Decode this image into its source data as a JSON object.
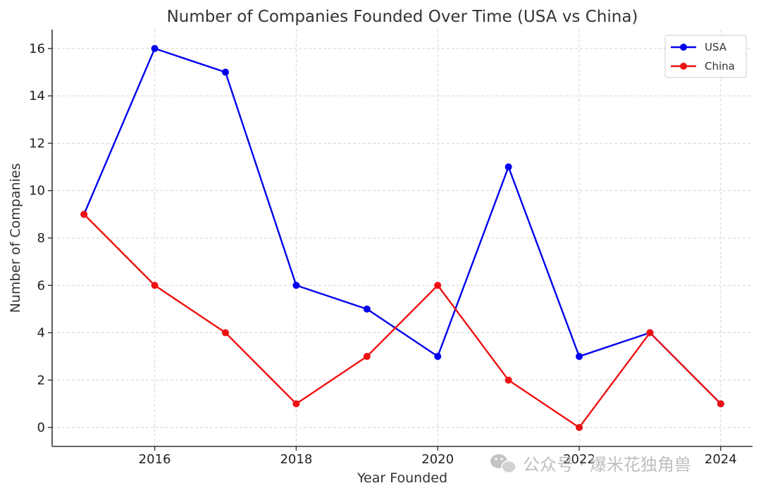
{
  "chart_data": {
    "type": "line",
    "title": "Number of Companies Founded Over Time (USA vs China)",
    "xlabel": "Year Founded",
    "ylabel": "Number of Companies",
    "x": [
      2015,
      2016,
      2017,
      2018,
      2019,
      2020,
      2021,
      2022,
      2023,
      2024
    ],
    "xlim": [
      2014.55,
      2024.45
    ],
    "ylim": [
      -0.8,
      16.8
    ],
    "xticks": [
      2016,
      2018,
      2020,
      2022,
      2024
    ],
    "yticks": [
      0,
      2,
      4,
      6,
      8,
      10,
      12,
      14,
      16
    ],
    "grid": true,
    "legend_position": "top-right",
    "series": [
      {
        "name": "USA",
        "color": "#0000ee",
        "values": [
          9,
          16,
          15,
          6,
          5,
          3,
          11,
          3,
          4,
          1
        ]
      },
      {
        "name": "China",
        "color": "#ee1111",
        "values": [
          9,
          6,
          4,
          1,
          3,
          6,
          2,
          0,
          4,
          1
        ]
      }
    ]
  },
  "watermark": {
    "text": "公众号 · 爆米花独角兽",
    "icon": "wechat-icon"
  }
}
